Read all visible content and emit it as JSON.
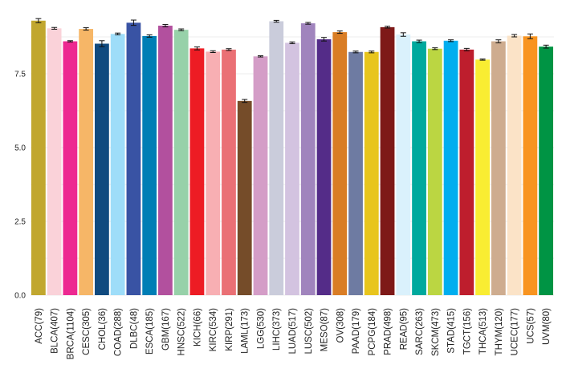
{
  "chart_data": {
    "type": "bar",
    "title": "",
    "xlabel": "",
    "ylabel": "",
    "ylim": [
      0,
      9.5
    ],
    "yticks": [
      0.0,
      2.5,
      5.0,
      7.5
    ],
    "ytick_labels": [
      "0.0",
      "2.5",
      "5.0",
      "7.5"
    ],
    "grid": true,
    "legend": "none",
    "categories": [
      "ACC(79)",
      "BLCA(407)",
      "BRCA(1104)",
      "CESC(305)",
      "CHOL(36)",
      "COAD(288)",
      "DLBC(48)",
      "ESCA(185)",
      "GBM(167)",
      "HNSC(522)",
      "KICH(66)",
      "KIRC(534)",
      "KIRP(291)",
      "LAML(173)",
      "LGG(530)",
      "LIHC(373)",
      "LUAD(517)",
      "LUSC(502)",
      "MESO(87)",
      "OV(308)",
      "PAAD(179)",
      "PCPG(184)",
      "PRAD(498)",
      "READ(95)",
      "SARC(263)",
      "SKCM(473)",
      "STAD(415)",
      "TGCT(156)",
      "THCA(513)",
      "THYM(120)",
      "UCEC(177)",
      "UCS(57)",
      "UVM(80)"
    ],
    "values": [
      9.3,
      9.04,
      8.6,
      9.02,
      8.52,
      8.85,
      9.23,
      8.78,
      9.13,
      8.99,
      8.36,
      8.25,
      8.32,
      6.58,
      8.09,
      9.28,
      8.55,
      9.21,
      8.67,
      8.91,
      8.24,
      8.24,
      9.08,
      8.83,
      8.6,
      8.35,
      8.62,
      8.32,
      7.98,
      8.6,
      8.79,
      8.77,
      8.42
    ],
    "errors": [
      0.07,
      0.03,
      0.02,
      0.04,
      0.1,
      0.03,
      0.09,
      0.04,
      0.04,
      0.03,
      0.05,
      0.03,
      0.03,
      0.05,
      0.02,
      0.03,
      0.03,
      0.03,
      0.06,
      0.04,
      0.03,
      0.03,
      0.03,
      0.06,
      0.04,
      0.03,
      0.03,
      0.04,
      0.02,
      0.05,
      0.04,
      0.08,
      0.05
    ],
    "colors": [
      "#C1A72F",
      "#FAD2D9",
      "#ED2891",
      "#F6B667",
      "#104A7F",
      "#9EDDF9",
      "#3953A4",
      "#007EB5",
      "#B2509E",
      "#97D1A9",
      "#ED1C24",
      "#F8AFB3",
      "#EA7075",
      "#754C29",
      "#D49DC7",
      "#CACCDB",
      "#D3C3E0",
      "#A084BD",
      "#542C88",
      "#D97D25",
      "#6E7BA2",
      "#E8C51D",
      "#7E1918",
      "#DAF1FC",
      "#00A99D",
      "#BBD642",
      "#00AEEF",
      "#BE1E2D",
      "#F9ED32",
      "#CEAC8F",
      "#FBE3C7",
      "#F89420",
      "#009444"
    ]
  }
}
